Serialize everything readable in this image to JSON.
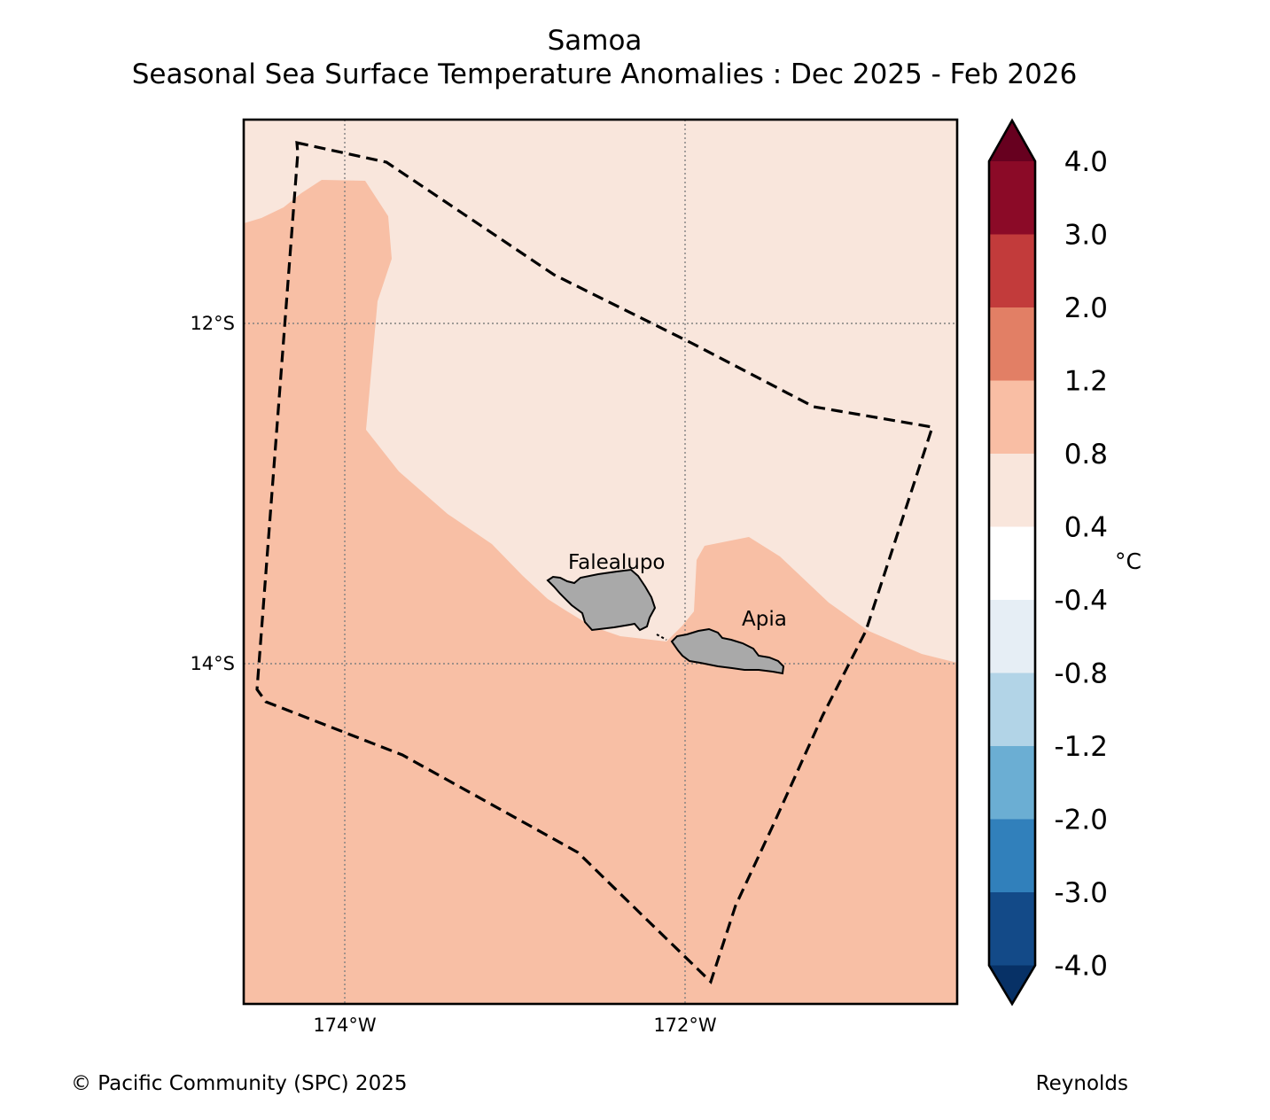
{
  "title": {
    "line1": "Samoa",
    "line2": "Seasonal Sea Surface Temperature Anomalies : Dec 2025 - Feb 2026"
  },
  "axes": {
    "lat_ticks": [
      "12°S",
      "14°S"
    ],
    "lon_ticks": [
      "174°W",
      "172°W"
    ]
  },
  "places": {
    "falealupo": "Falealupo",
    "apia": "Apia"
  },
  "colorbar": {
    "unit": "°C",
    "tick_labels": [
      "4.0",
      "3.0",
      "2.0",
      "1.2",
      "0.8",
      "0.4",
      "-0.4",
      "-0.8",
      "-1.2",
      "-2.0",
      "-3.0",
      "-4.0"
    ],
    "colors": [
      "#67001f",
      "#8b0a27",
      "#c23b3b",
      "#e27f65",
      "#f9bea4",
      "#f9e6dc",
      "#ffffff",
      "#e6eef5",
      "#b2d4e7",
      "#6baed3",
      "#3180bb",
      "#134a88",
      "#073166"
    ]
  },
  "fill_colors": {
    "anomaly_0_4_to_0_8": "#f9e6dc",
    "anomaly_0_8_to_1_2": "#f8bfa5",
    "land": "#a9a9a9"
  },
  "footer": {
    "copyright": "© Pacific Community (SPC) 2025",
    "source": "Reynolds"
  }
}
